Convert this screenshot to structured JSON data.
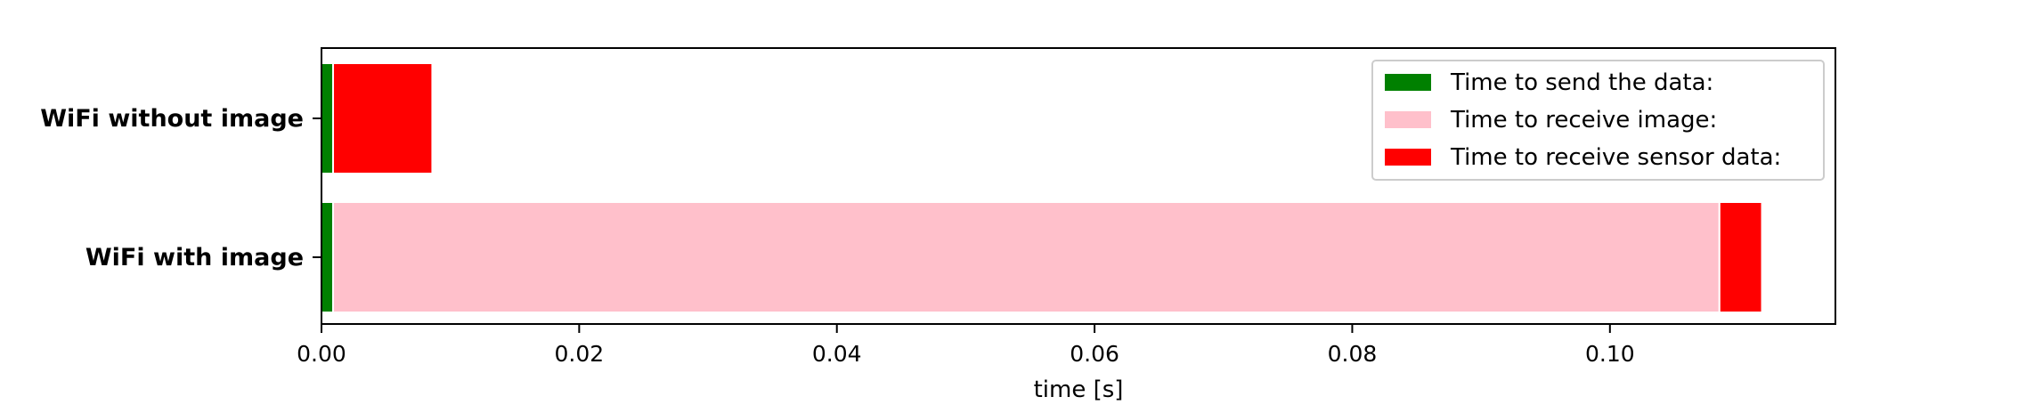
{
  "chart_data": {
    "type": "bar",
    "orientation": "horizontal",
    "stacked": true,
    "categories": [
      "WiFi without image",
      "WiFi with image"
    ],
    "series": [
      {
        "name": "Time to send the data:",
        "color": "#008000",
        "values": [
          0.0009,
          0.0009
        ]
      },
      {
        "name": "Time to receive image:",
        "color": "#ffc0cb",
        "values": [
          0,
          0.1076
        ]
      },
      {
        "name": "Time to receive sensor data:",
        "color": "#ff0000",
        "values": [
          0.0077,
          0.0033
        ]
      }
    ],
    "xlabel": "time [s]",
    "ylabel": "",
    "xlim": [
      0,
      0.1175
    ],
    "xticks": [
      "0.00",
      "0.02",
      "0.04",
      "0.06",
      "0.08",
      "0.10"
    ],
    "grid": false,
    "legend_position": "top-right"
  }
}
